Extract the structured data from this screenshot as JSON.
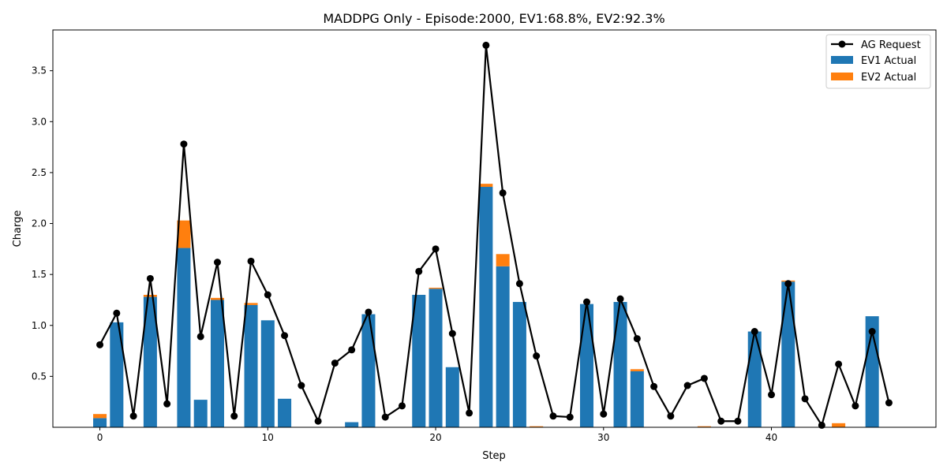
{
  "chart_data": {
    "type": "bar",
    "title": "MADDPG Only - Episode:2000, EV1:68.8%, EV2:92.3%",
    "xlabel": "Step",
    "ylabel": "Charge",
    "xlim": [
      -2.8,
      49.8
    ],
    "ylim": [
      0,
      3.9
    ],
    "x_ticks": [
      0,
      10,
      20,
      30,
      40
    ],
    "y_ticks": [
      0.5,
      1.0,
      1.5,
      2.0,
      2.5,
      3.0,
      3.5
    ],
    "y_tick_labels": [
      "0.5",
      "1.0",
      "1.5",
      "2.0",
      "2.5",
      "3.0",
      "3.5"
    ],
    "grid": false,
    "legend_position": "top-right",
    "x": [
      0,
      1,
      2,
      3,
      4,
      5,
      6,
      7,
      8,
      9,
      10,
      11,
      12,
      13,
      14,
      15,
      16,
      17,
      18,
      19,
      20,
      21,
      22,
      23,
      24,
      25,
      26,
      27,
      28,
      29,
      30,
      31,
      32,
      33,
      34,
      35,
      36,
      37,
      38,
      39,
      40,
      41,
      42,
      43,
      44,
      45,
      46,
      47
    ],
    "series": [
      {
        "name": "AG Request",
        "kind": "line",
        "color": "#000000",
        "values": [
          0.81,
          1.12,
          0.11,
          1.46,
          0.23,
          2.78,
          0.89,
          1.62,
          0.11,
          1.63,
          1.3,
          0.9,
          0.41,
          0.06,
          0.63,
          0.76,
          1.13,
          0.1,
          0.21,
          1.53,
          1.75,
          0.92,
          0.14,
          3.75,
          2.3,
          1.41,
          0.7,
          0.11,
          0.1,
          1.23,
          0.13,
          1.26,
          0.87,
          0.4,
          0.11,
          0.41,
          0.48,
          0.06,
          0.06,
          0.94,
          0.32,
          1.41,
          0.28,
          0.02,
          0.62,
          0.21,
          0.94,
          0.24
        ]
      },
      {
        "name": "EV1 Actual",
        "kind": "bar",
        "color": "#1f77b4",
        "values": [
          0.09,
          1.03,
          0,
          1.28,
          0,
          1.76,
          0.27,
          1.25,
          0,
          1.2,
          1.05,
          0.28,
          0,
          0,
          0,
          0.05,
          1.11,
          0,
          0,
          1.3,
          1.36,
          0.59,
          0,
          2.36,
          1.58,
          1.23,
          0,
          0,
          0,
          1.21,
          0,
          1.23,
          0.55,
          0,
          0,
          0,
          0,
          0,
          0,
          0.94,
          0,
          1.43,
          0,
          0,
          0,
          0,
          1.09,
          0
        ]
      },
      {
        "name": "EV2 Actual",
        "kind": "bar",
        "color": "#ff7f0e",
        "values": [
          0.04,
          0,
          0,
          0.02,
          0,
          0.27,
          0,
          0.02,
          0,
          0.02,
          0,
          0,
          0,
          0,
          0,
          0,
          0,
          0,
          0,
          0,
          0.01,
          0,
          0,
          0.03,
          0.12,
          0,
          0.01,
          0,
          0,
          0,
          0,
          0,
          0.02,
          0,
          0,
          0,
          0.01,
          0,
          0,
          0,
          0,
          0.01,
          0,
          0,
          0.04,
          0,
          0,
          0
        ]
      }
    ]
  }
}
